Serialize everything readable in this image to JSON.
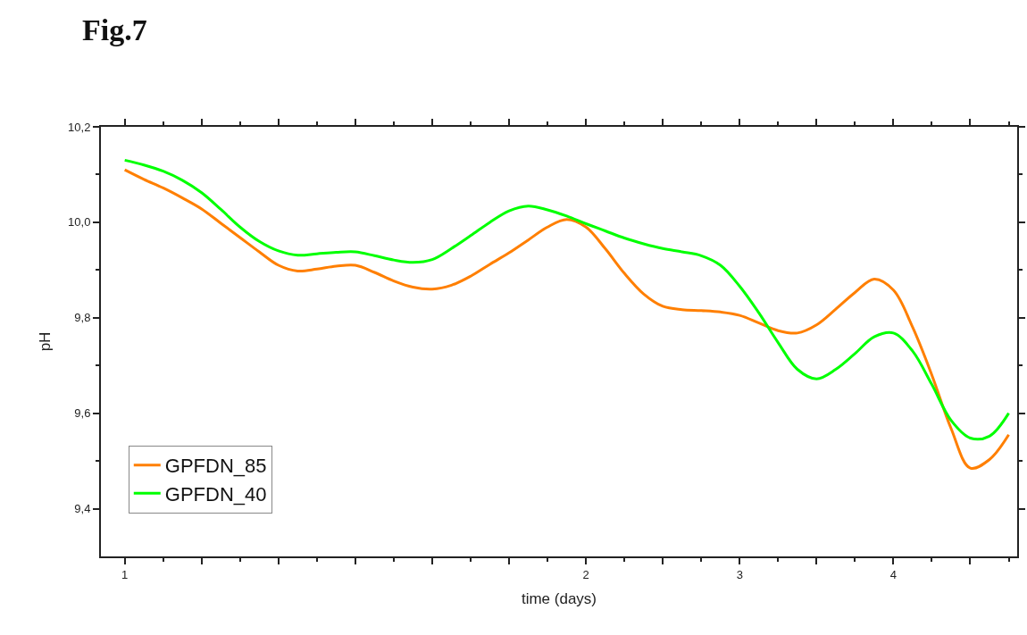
{
  "chart_data": {
    "type": "line",
    "title": "Fig.7",
    "xlabel": "time (days)",
    "ylabel": "pH",
    "categories": [
      "1",
      null,
      null,
      null,
      null,
      null,
      null,
      null,
      null,
      null,
      null,
      null,
      null,
      null,
      null,
      null,
      null,
      null,
      null,
      null,
      null,
      null,
      null,
      null,
      "2",
      null,
      null,
      null,
      null,
      null,
      null,
      null,
      "3",
      null,
      null,
      null,
      null,
      null,
      null,
      null,
      "4",
      null,
      null,
      null,
      null,
      null,
      null
    ],
    "ylim": [
      9.3,
      10.2
    ],
    "yticks": [
      {
        "value": 9.4,
        "label": "9,4"
      },
      {
        "value": 9.6,
        "label": "9,6"
      },
      {
        "value": 9.8,
        "label": "9,8"
      },
      {
        "value": 10.0,
        "label": "10,0"
      },
      {
        "value": 10.2,
        "label": "10,2"
      }
    ],
    "legend": "bottom left",
    "marker": "none",
    "line_style": "solid",
    "series": [
      {
        "name": "GPFDN_85",
        "color": "#ff7f00",
        "values": [
          10.11,
          10.09,
          10.072,
          10.051,
          10.028,
          9.998,
          9.968,
          9.938,
          9.91,
          9.898,
          9.902,
          9.908,
          9.91,
          9.895,
          9.877,
          9.864,
          9.86,
          9.868,
          9.887,
          9.912,
          9.936,
          9.963,
          9.99,
          10.006,
          9.99,
          9.945,
          9.893,
          9.85,
          9.824,
          9.817,
          9.815,
          9.812,
          9.805,
          9.789,
          9.773,
          9.768,
          9.785,
          9.818,
          9.853,
          9.881,
          9.858,
          9.78,
          9.68,
          9.568,
          9.485,
          9.503,
          9.555
        ]
      },
      {
        "name": "GPFDN_40",
        "color": "#00ff00",
        "values": [
          10.13,
          10.12,
          10.107,
          10.088,
          10.062,
          10.027,
          9.99,
          9.96,
          9.94,
          9.931,
          9.934,
          9.937,
          9.938,
          9.93,
          9.921,
          9.916,
          9.922,
          9.945,
          9.972,
          10.0,
          10.024,
          10.034,
          10.026,
          10.013,
          9.997,
          9.982,
          9.967,
          9.955,
          9.945,
          9.938,
          9.93,
          9.91,
          9.866,
          9.81,
          9.748,
          9.692,
          9.672,
          9.692,
          9.725,
          9.76,
          9.768,
          9.73,
          9.66,
          9.585,
          9.548,
          9.552,
          9.6
        ]
      }
    ]
  }
}
